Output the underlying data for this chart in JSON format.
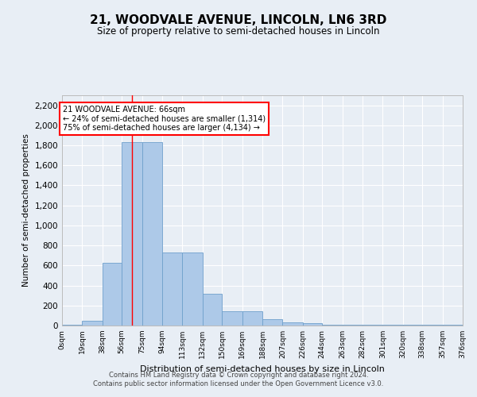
{
  "title": "21, WOODVALE AVENUE, LINCOLN, LN6 3RD",
  "subtitle": "Size of property relative to semi-detached houses in Lincoln",
  "xlabel": "Distribution of semi-detached houses by size in Lincoln",
  "ylabel": "Number of semi-detached properties",
  "bar_color": "#adc9e8",
  "bar_edge_color": "#6fa0cc",
  "background_color": "#e8eef5",
  "plot_bg_color": "#e8eef5",
  "grid_color": "#ffffff",
  "annotation_title": "21 WOODVALE AVENUE: 66sqm",
  "annotation_line1": "← 24% of semi-detached houses are smaller (1,314)",
  "annotation_line2": "75% of semi-detached houses are larger (4,134) →",
  "property_size": 66,
  "bin_edges": [
    0,
    19,
    38,
    56,
    75,
    94,
    113,
    132,
    150,
    169,
    188,
    207,
    226,
    244,
    263,
    282,
    301,
    320,
    338,
    357,
    376
  ],
  "bin_labels": [
    "0sqm",
    "19sqm",
    "38sqm",
    "56sqm",
    "75sqm",
    "94sqm",
    "113sqm",
    "132sqm",
    "150sqm",
    "169sqm",
    "188sqm",
    "207sqm",
    "226sqm",
    "244sqm",
    "263sqm",
    "282sqm",
    "301sqm",
    "320sqm",
    "338sqm",
    "357sqm",
    "376sqm"
  ],
  "counts": [
    5,
    50,
    625,
    1830,
    1830,
    730,
    730,
    315,
    140,
    140,
    60,
    35,
    20,
    10,
    5,
    5,
    5,
    5,
    5,
    5
  ],
  "ylim": [
    0,
    2300
  ],
  "yticks": [
    0,
    200,
    400,
    600,
    800,
    1000,
    1200,
    1400,
    1600,
    1800,
    2000,
    2200
  ],
  "vline_x": 66,
  "footer_line1": "Contains HM Land Registry data © Crown copyright and database right 2024.",
  "footer_line2": "Contains public sector information licensed under the Open Government Licence v3.0."
}
